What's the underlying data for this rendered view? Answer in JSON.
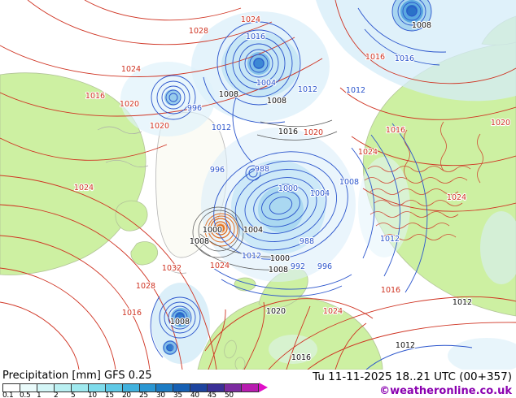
{
  "footer": {
    "title": "Precipitation [mm] GFS 0.25",
    "valid_time": "Tu 11-11-2025 18..21 UTC (00+357)",
    "credit": "©weatheronline.co.uk"
  },
  "legend": {
    "unit": "mm",
    "ticks": [
      "0.1",
      "0.5",
      "1",
      "2",
      "5",
      "10",
      "15",
      "20",
      "25",
      "30",
      "35",
      "40",
      "45",
      "50"
    ],
    "colors": [
      "#ffffff",
      "#eafbfb",
      "#d4f6f7",
      "#baf0f2",
      "#9fe9ef",
      "#7fdcec",
      "#5fc9e6",
      "#42b2de",
      "#2b97d3",
      "#1d7cc4",
      "#1660b4",
      "#1d449f",
      "#3a2f96",
      "#7c2ba0",
      "#b81cb0"
    ],
    "arrow_color": "#e010c8"
  },
  "map": {
    "model": "GFS 0.25",
    "variable": "Precipitation",
    "red_labels": [
      "1024",
      "1028",
      "1024",
      "1016",
      "1020",
      "1020",
      "1032",
      "1028",
      "1024",
      "1016",
      "1024",
      "1016",
      "1024",
      "1020",
      "1016",
      "1016",
      "1024",
      "1024",
      "1020"
    ],
    "blue_labels": [
      "1016",
      "1004",
      "1012",
      "996",
      "1012",
      "988",
      "1004",
      "988",
      "992",
      "996",
      "1012",
      "1012",
      "1008",
      "1016",
      "1000",
      "996",
      "1012"
    ],
    "black_labels": [
      "1008",
      "1008",
      "1008",
      "1008",
      "1000",
      "1008",
      "1000",
      "1008",
      "1016",
      "1020",
      "1016",
      "1012",
      "1012",
      "1004"
    ]
  },
  "colors": {
    "land": "#cdf0a2",
    "isobar_red": "#cf3322",
    "contour_blue": "#2b55cc",
    "precip_light": "#d9eefa",
    "credit_purple": "#8a00b0"
  }
}
